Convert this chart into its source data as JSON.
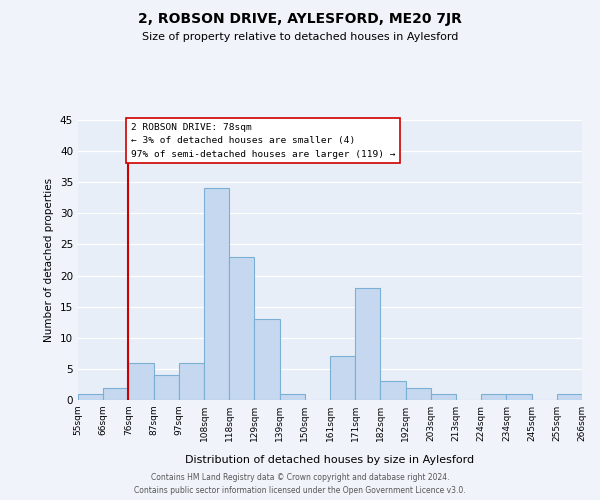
{
  "title": "2, ROBSON DRIVE, AYLESFORD, ME20 7JR",
  "subtitle": "Size of property relative to detached houses in Aylesford",
  "xlabel": "Distribution of detached houses by size in Aylesford",
  "ylabel": "Number of detached properties",
  "footer_lines": [
    "Contains HM Land Registry data © Crown copyright and database right 2024.",
    "Contains public sector information licensed under the Open Government Licence v3.0."
  ],
  "bin_labels": [
    "55sqm",
    "66sqm",
    "76sqm",
    "87sqm",
    "97sqm",
    "108sqm",
    "118sqm",
    "129sqm",
    "139sqm",
    "150sqm",
    "161sqm",
    "171sqm",
    "182sqm",
    "192sqm",
    "203sqm",
    "213sqm",
    "224sqm",
    "234sqm",
    "245sqm",
    "255sqm",
    "266sqm"
  ],
  "bar_values": [
    1,
    2,
    6,
    4,
    6,
    34,
    23,
    13,
    1,
    0,
    7,
    18,
    3,
    2,
    1,
    0,
    1,
    1,
    0,
    1
  ],
  "bar_color": "#c5d8f0",
  "bar_edge_color": "#7bafd4",
  "property_line_label": "2 ROBSON DRIVE: 78sqm",
  "annotation_line1": "← 3% of detached houses are smaller (4)",
  "annotation_line2": "97% of semi-detached houses are larger (119) →",
  "annotation_box_color": "white",
  "annotation_box_edge": "#cc0000",
  "line_color": "#cc0000",
  "ylim": [
    0,
    45
  ],
  "yticks": [
    0,
    5,
    10,
    15,
    20,
    25,
    30,
    35,
    40,
    45
  ],
  "background_color": "#f0f4fa",
  "plot_bg_color": "#e8eef7"
}
